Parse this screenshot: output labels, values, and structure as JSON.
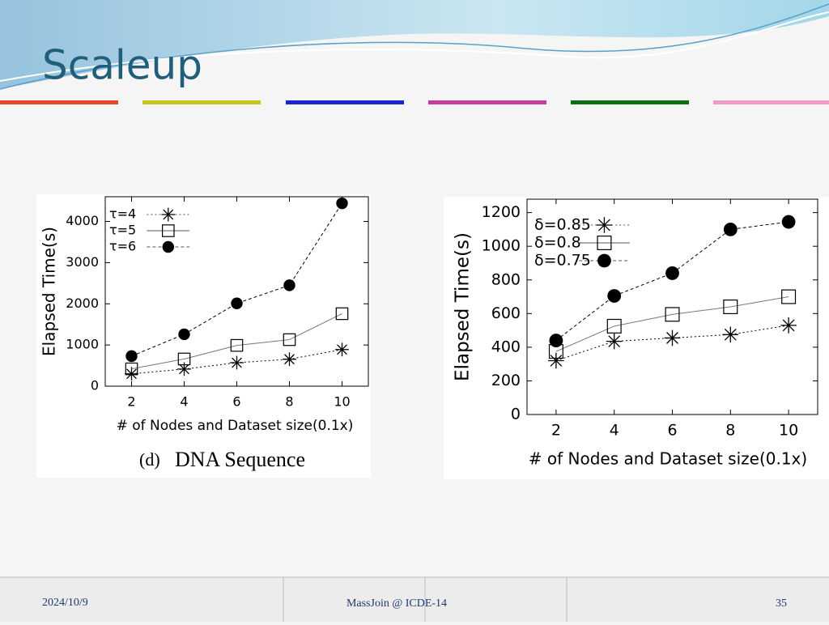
{
  "slide": {
    "title": "Scaleup",
    "footer_date": "2024/10/9",
    "footer_center": "MassJoin @ ICDE-14",
    "footer_page": "35"
  },
  "chart_data": [
    {
      "type": "line",
      "caption_label": "(d)",
      "caption": "DNA Sequence",
      "x_label": "# of Nodes and Dataset size(0.1x)",
      "y_label": "Elapsed Time(s)",
      "x": [
        2,
        4,
        6,
        8,
        10
      ],
      "xlim": [
        1,
        11
      ],
      "xticks": [
        2,
        4,
        6,
        8,
        10
      ],
      "ylim": [
        0,
        4600
      ],
      "yticks": [
        0,
        1000,
        2000,
        3000,
        4000
      ],
      "legend": "top-left",
      "series": [
        {
          "name": "τ=4",
          "color": "#000000",
          "marker": "star",
          "values": [
            300,
            415,
            570,
            655,
            890
          ]
        },
        {
          "name": "τ=5",
          "color": "#000000",
          "marker": "square",
          "values": [
            420,
            660,
            990,
            1130,
            1760
          ]
        },
        {
          "name": "τ=6",
          "color": "#000000",
          "marker": "circle",
          "values": [
            730,
            1260,
            2010,
            2450,
            4440
          ]
        }
      ]
    },
    {
      "type": "line",
      "x_label": "# of Nodes and Dataset size(0.1x)",
      "y_label": "Elapsed Time(s)",
      "x": [
        2,
        4,
        6,
        8,
        10
      ],
      "xlim": [
        1,
        11
      ],
      "xticks": [
        2,
        4,
        6,
        8,
        10
      ],
      "ylim": [
        0,
        1280
      ],
      "yticks": [
        0,
        200,
        400,
        600,
        800,
        1000,
        1200
      ],
      "legend": "top-left",
      "series": [
        {
          "name": "δ=0.85",
          "color": "#000000",
          "marker": "star",
          "values": [
            320,
            435,
            455,
            475,
            530
          ]
        },
        {
          "name": "δ=0.8",
          "color": "#000000",
          "marker": "square",
          "values": [
            375,
            525,
            595,
            640,
            700
          ]
        },
        {
          "name": "δ=0.75",
          "color": "#000000",
          "marker": "circle",
          "values": [
            440,
            705,
            840,
            1100,
            1145
          ]
        }
      ]
    }
  ]
}
